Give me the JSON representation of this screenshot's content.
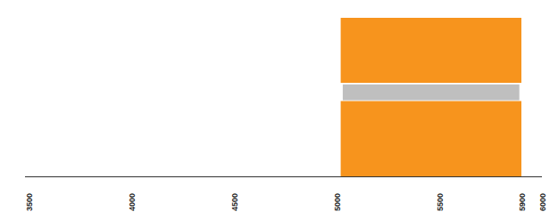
{
  "chart_data": {
    "type": "bar",
    "orientation": "horizontal",
    "categories": [
      null,
      null,
      null
    ],
    "values": [
      [
        5020,
        5900
      ],
      [
        5030,
        5890
      ],
      [
        5020,
        5900
      ]
    ],
    "colors": [
      "#f7941d",
      "#bfbfbf",
      "#f7941d"
    ],
    "xlim": [
      3500,
      6000
    ],
    "xticks": [
      3500,
      4000,
      4500,
      5000,
      5500,
      5900,
      6000
    ],
    "grid": false,
    "tick_labels": "x"
  }
}
